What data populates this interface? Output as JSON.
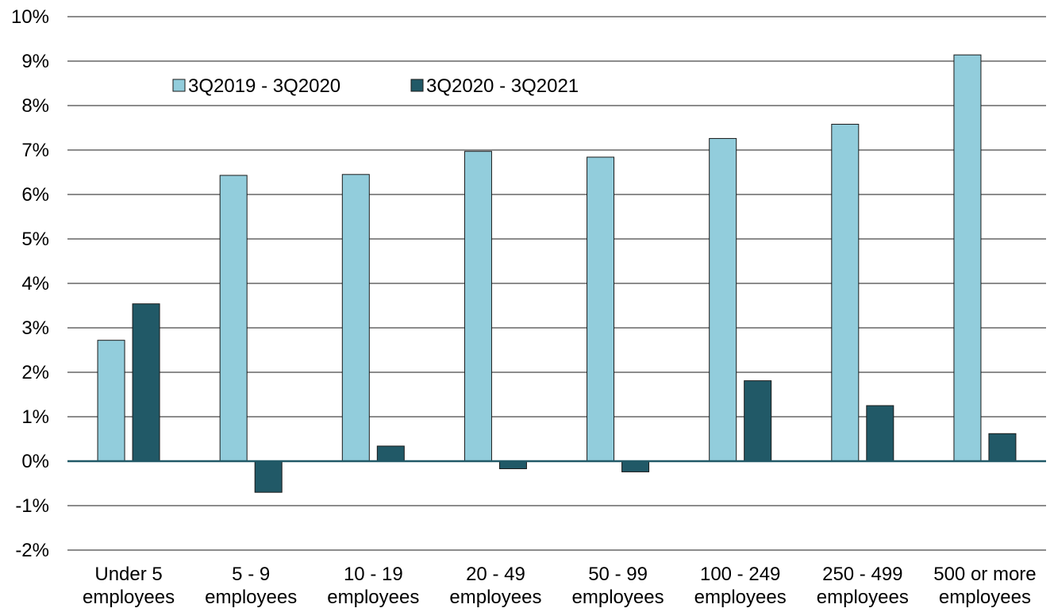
{
  "chart_data": {
    "type": "bar",
    "title": "",
    "xlabel": "",
    "ylabel": "",
    "categories": [
      [
        "Under 5",
        "employees"
      ],
      [
        "5 - 9",
        "employees"
      ],
      [
        "10 - 19",
        "employees"
      ],
      [
        "20 - 49",
        "employees"
      ],
      [
        "50 - 99",
        "employees"
      ],
      [
        "100 - 249",
        "employees"
      ],
      [
        "250 - 499",
        "employees"
      ],
      [
        "500 or more",
        "employees"
      ]
    ],
    "series": [
      {
        "name": "3Q2019 - 3Q2020",
        "color": "#92CDDC",
        "values": [
          2.72,
          6.43,
          6.45,
          6.97,
          6.84,
          7.26,
          7.58,
          9.14
        ]
      },
      {
        "name": "3Q2020 - 3Q2021",
        "color": "#215967",
        "values": [
          3.54,
          -0.7,
          0.34,
          -0.17,
          -0.24,
          1.81,
          1.25,
          0.62
        ]
      }
    ],
    "ylim": [
      -2,
      10
    ],
    "ytick_step": 1,
    "ytick_format": "percent",
    "grid": true,
    "legend_position": "top-left"
  }
}
